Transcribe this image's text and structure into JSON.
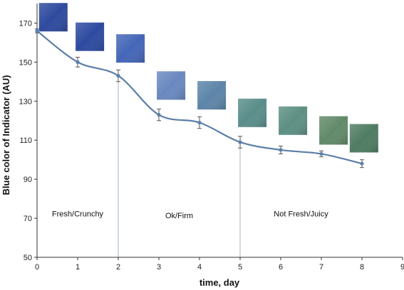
{
  "chart_data": {
    "type": "line",
    "xlabel": "time, day",
    "ylabel": "Blue color of Indicator (AU)",
    "xlim": [
      0,
      9
    ],
    "ylim": [
      50,
      180
    ],
    "x_ticks": [
      0,
      1,
      2,
      3,
      4,
      5,
      6,
      7,
      8,
      9
    ],
    "y_ticks": [
      50,
      70,
      90,
      110,
      130,
      150,
      170
    ],
    "grid": false,
    "legend": "none",
    "series": [
      {
        "x": [
          0,
          1,
          2,
          3,
          4,
          5,
          6,
          7,
          8
        ],
        "y": [
          166,
          150,
          143,
          123,
          119,
          109,
          105,
          103,
          98
        ],
        "error": [
          1,
          2.5,
          3,
          3,
          3,
          3,
          2,
          1.5,
          2
        ],
        "color": "#5b7fa6",
        "markers": true
      }
    ],
    "reference_lines_x": [
      2,
      5
    ],
    "regions": [
      {
        "label": "Fresh/Crunchy",
        "x": 1,
        "y": 71
      },
      {
        "label": "Ok/Firm",
        "x": 3.5,
        "y": 70
      },
      {
        "label": "Not Fresh/Juicy",
        "x": 6.5,
        "y": 71
      }
    ],
    "swatches": [
      {
        "x": 0.4,
        "y": 173,
        "color": "#2f4a9e"
      },
      {
        "x": 1.3,
        "y": 163,
        "color": "#2d4aa0"
      },
      {
        "x": 2.3,
        "y": 157,
        "color": "#4566b8"
      },
      {
        "x": 3.3,
        "y": 138,
        "color": "#6a88c0"
      },
      {
        "x": 4.3,
        "y": 133,
        "color": "#5d85a8"
      },
      {
        "x": 5.3,
        "y": 124,
        "color": "#5a8e8a"
      },
      {
        "x": 6.3,
        "y": 120,
        "color": "#5e8f82"
      },
      {
        "x": 7.3,
        "y": 115,
        "color": "#628a6a"
      },
      {
        "x": 8.05,
        "y": 111,
        "color": "#4f7c63"
      }
    ]
  }
}
